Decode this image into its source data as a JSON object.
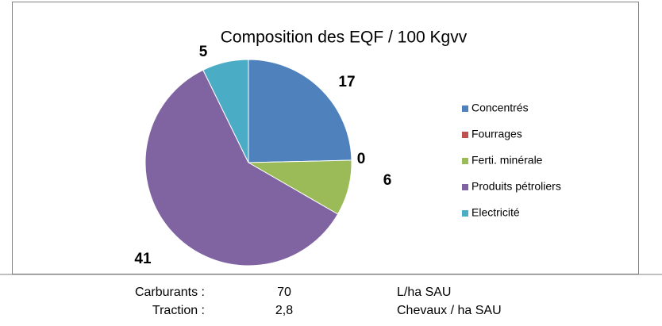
{
  "chart_data": {
    "type": "pie",
    "title": "Composition des EQF / 100 Kgvv",
    "categories": [
      "Concentrés",
      "Fourrages",
      "Ferti. minérale",
      "Produits pétroliers",
      "Electricité"
    ],
    "values": [
      17,
      0,
      6,
      41,
      5
    ],
    "colors": [
      "#4f81bd",
      "#c0504d",
      "#9bbb59",
      "#8064a2",
      "#4bacc6"
    ],
    "legend": "right"
  },
  "table": {
    "rows": [
      [
        "Carburants :",
        "70",
        "L/ha SAU"
      ],
      [
        "Traction :",
        "2,8",
        "Chevaux / ha SAU"
      ]
    ]
  }
}
